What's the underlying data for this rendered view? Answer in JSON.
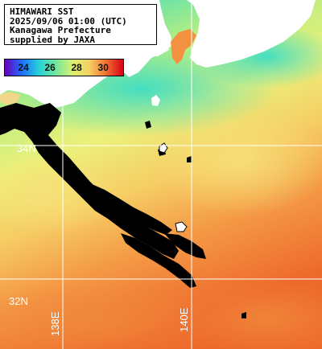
{
  "info_box": {
    "line1": "HIMAWARI SST",
    "line2": "2025/09/06 01:00 (UTC)",
    "line3": "Kanagawa Prefecture",
    "line4": "supplied by JAXA"
  },
  "color_scale": {
    "ticks": [
      "24",
      "26",
      "28",
      "30"
    ],
    "tick_values": [
      24,
      26,
      28,
      30
    ],
    "min": 22.6,
    "max": 31.5,
    "colors": [
      "#6a00b8",
      "#1e6dff",
      "#26d0d8",
      "#70e6a0",
      "#d8f070",
      "#f6d064",
      "#f07030",
      "#d80018"
    ]
  },
  "grid": {
    "lat_labels": [
      "34N",
      "32N"
    ],
    "lon_labels": [
      "138E",
      "140E"
    ],
    "line_color": "#ffffff"
  },
  "map": {
    "land_color": "#ffffff",
    "cloud_color": "#000000"
  }
}
